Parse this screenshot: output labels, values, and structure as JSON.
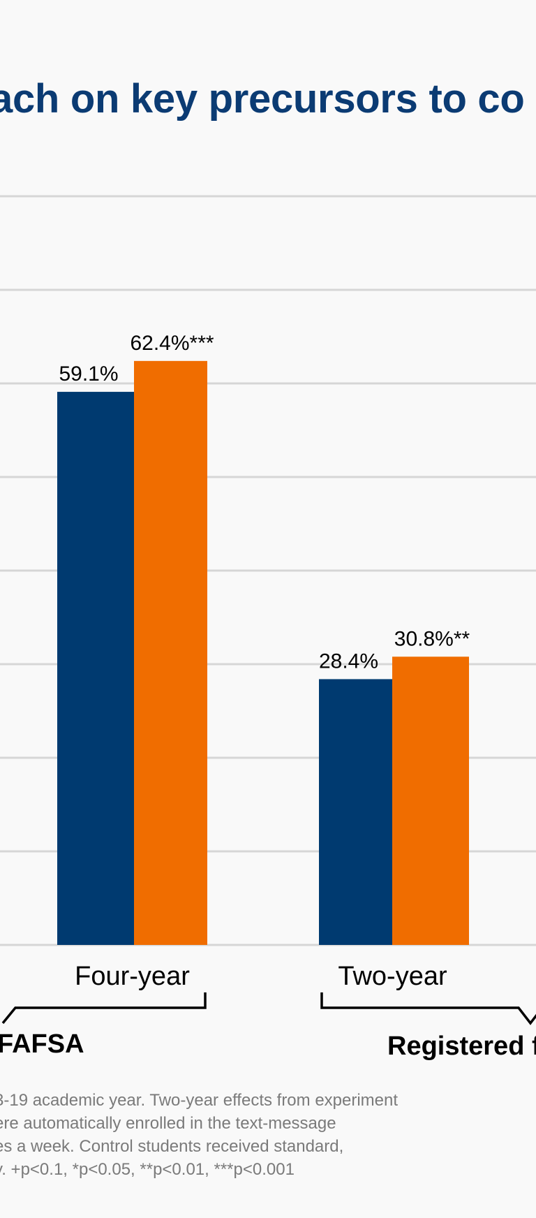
{
  "title": "ach on key precursors to co",
  "chart_data": {
    "type": "bar",
    "groups": [
      {
        "label": "Four-year",
        "bars": [
          {
            "value": 59.1,
            "label": "59.1%",
            "color": "#003a70"
          },
          {
            "value": 62.4,
            "label": "62.4%***",
            "color": "#f06d00"
          }
        ]
      },
      {
        "label": "Two-year",
        "bars": [
          {
            "value": 28.4,
            "label": "28.4%",
            "color": "#003a70"
          },
          {
            "value": 30.8,
            "label": "30.8%**",
            "color": "#f06d00"
          }
        ]
      }
    ],
    "brackets": [
      {
        "label": "FAFSA"
      },
      {
        "label": "Registered f"
      }
    ],
    "ylim": [
      0,
      80
    ],
    "grid": true,
    "colors": {
      "control": "#003a70",
      "treatment": "#f06d00",
      "grid": "#d6d6d6"
    }
  },
  "footnote": [
    "3-19 academic year. Two-year effects from experiment",
    "ere automatically enrolled in the text-message",
    "es a week. Control students received standard,",
    "y. +p<0.1, *p<0.05, **p<0.01, ***p<0.001"
  ]
}
